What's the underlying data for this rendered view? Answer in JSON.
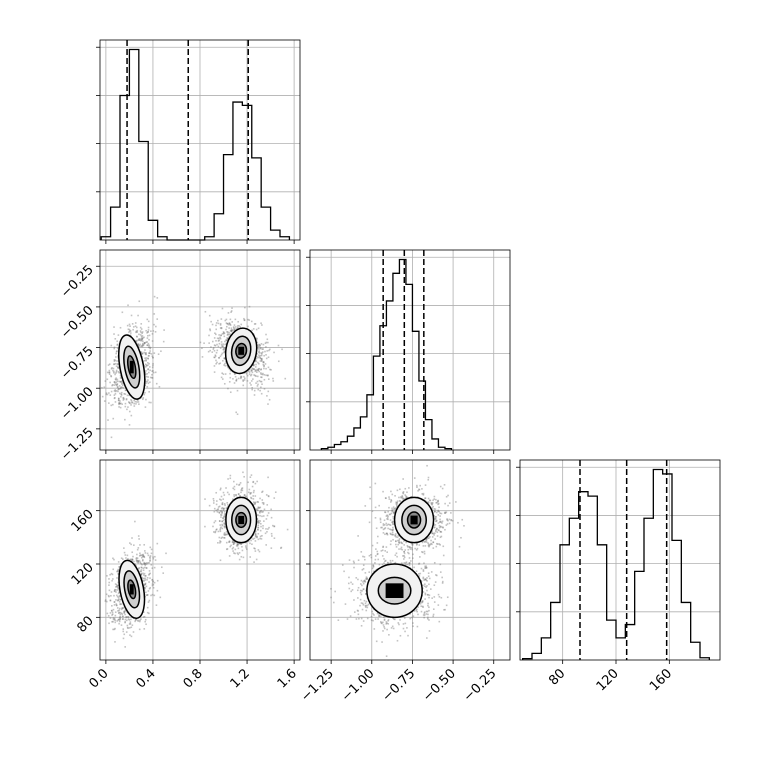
{
  "chart_data": {
    "type": "corner",
    "title": "",
    "colors": {
      "points": "#7a7a7a",
      "lines": "#000000",
      "grid": "#b0b0b0"
    },
    "parameters": [
      {
        "index": 0,
        "range": [
          -0.05,
          1.65
        ],
        "ticks": [
          0.0,
          0.4,
          0.8,
          1.2,
          1.6
        ],
        "tick_labels": [
          "0.0",
          "0.4",
          "0.8",
          "1.2",
          "1.6"
        ],
        "quantiles": [
          0.18,
          0.7,
          1.21
        ]
      },
      {
        "index": 1,
        "range": [
          -1.38,
          -0.15
        ],
        "ticks": [
          -1.25,
          -1.0,
          -0.75,
          -0.5,
          -0.25
        ],
        "tick_labels": [
          "−1.25",
          "−1.00",
          "−0.75",
          "−0.50",
          "−0.25"
        ],
        "quantiles": [
          -0.93,
          -0.8,
          -0.68
        ]
      },
      {
        "index": 2,
        "range": [
          48,
          198
        ],
        "ticks": [
          80,
          120,
          160
        ],
        "tick_labels": [
          "80",
          "120",
          "160"
        ],
        "quantiles": [
          93,
          128,
          158
        ]
      }
    ],
    "histograms": [
      {
        "param": 0,
        "bin_edges": [
          -0.04,
          0.04,
          0.12,
          0.2,
          0.28,
          0.36,
          0.44,
          0.52,
          0.6,
          0.68,
          0.76,
          0.84,
          0.92,
          1.0,
          1.08,
          1.16,
          1.24,
          1.32,
          1.4,
          1.48,
          1.56
        ],
        "counts": [
          1,
          10,
          44,
          58,
          30,
          6,
          1,
          0,
          0,
          0,
          0,
          1,
          8,
          26,
          42,
          41,
          25,
          10,
          3,
          1
        ]
      },
      {
        "param": 1,
        "bin_edges": [
          -1.31,
          -1.27,
          -1.23,
          -1.19,
          -1.15,
          -1.11,
          -1.07,
          -1.03,
          -0.99,
          -0.95,
          -0.91,
          -0.87,
          -0.83,
          -0.79,
          -0.75,
          -0.71,
          -0.67,
          -0.63,
          -0.59,
          -0.55,
          -0.51
        ],
        "counts": [
          0.5,
          1,
          2,
          3,
          5,
          8,
          12,
          20,
          34,
          45,
          54,
          64,
          69,
          60,
          43,
          25,
          11,
          4,
          1,
          0.5
        ]
      },
      {
        "param": 2,
        "bin_edges": [
          50,
          57,
          64,
          71,
          78,
          85,
          92,
          99,
          106,
          113,
          120,
          127,
          134,
          141,
          148,
          155,
          162,
          169,
          176,
          183,
          190
        ],
        "counts": [
          0.3,
          1.5,
          5,
          13,
          26,
          32,
          38,
          37,
          26,
          9,
          5,
          8,
          20,
          32,
          43,
          42,
          27,
          13,
          4,
          0.5
        ]
      }
    ],
    "pairs": [
      {
        "x_param": 0,
        "y_param": 1,
        "clusters": [
          {
            "center": [
              0.22,
              -0.87
            ],
            "sd": [
              0.07,
              0.1
            ],
            "rho": 0.3,
            "n": 900,
            "levels": [
              [
                0.1,
                0.2
              ],
              [
                0.06,
                0.13
              ],
              [
                0.03,
                0.07
              ]
            ]
          },
          {
            "center": [
              1.15,
              -0.77
            ],
            "sd": [
              0.09,
              0.08
            ],
            "rho": -0.25,
            "n": 900,
            "levels": [
              [
                0.13,
                0.14
              ],
              [
                0.08,
                0.09
              ],
              [
                0.045,
                0.045
              ]
            ]
          }
        ]
      },
      {
        "x_param": 0,
        "y_param": 2,
        "clusters": [
          {
            "center": [
              0.22,
              101
            ],
            "sd": [
              0.07,
              11
            ],
            "rho": 0.3,
            "n": 900,
            "levels": [
              [
                0.1,
                22
              ],
              [
                0.06,
                14
              ],
              [
                0.03,
                7
              ]
            ]
          },
          {
            "center": [
              1.15,
              153
            ],
            "sd": [
              0.08,
              9
            ],
            "rho": 0.0,
            "n": 900,
            "levels": [
              [
                0.13,
                17
              ],
              [
                0.08,
                11
              ],
              [
                0.045,
                5.5
              ]
            ]
          }
        ]
      },
      {
        "x_param": 1,
        "y_param": 2,
        "clusters": [
          {
            "center": [
              -0.86,
              100
            ],
            "sd": [
              0.1,
              11
            ],
            "rho": 0.0,
            "n": 900,
            "levels": [
              [
                0.17,
                20
              ],
              [
                0.1,
                10
              ]
            ]
          },
          {
            "center": [
              -0.74,
              153
            ],
            "sd": [
              0.08,
              9
            ],
            "rho": 0.0,
            "n": 900,
            "levels": [
              [
                0.12,
                17
              ],
              [
                0.075,
                11
              ],
              [
                0.04,
                6
              ]
            ]
          }
        ]
      }
    ]
  }
}
